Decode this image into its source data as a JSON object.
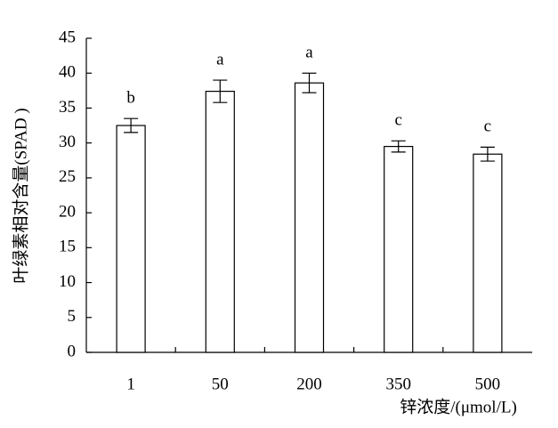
{
  "chart_data": {
    "type": "bar",
    "y_label": "叶绿素相对含量(SPAD )",
    "x_label": "锌浓度/(μmol/L)",
    "categories": [
      "1",
      "50",
      "200",
      "350",
      "500"
    ],
    "values": [
      32.5,
      37.4,
      38.6,
      29.5,
      28.4
    ],
    "errors": [
      1.0,
      1.6,
      1.4,
      0.8,
      1.0
    ],
    "annotations": [
      "b",
      "a",
      "a",
      "c",
      "c"
    ],
    "color": "#ffffff",
    "ylim": [
      0,
      45
    ],
    "yticks": [
      0,
      5,
      10,
      15,
      20,
      25,
      30,
      35,
      40,
      45
    ],
    "grid": false
  }
}
